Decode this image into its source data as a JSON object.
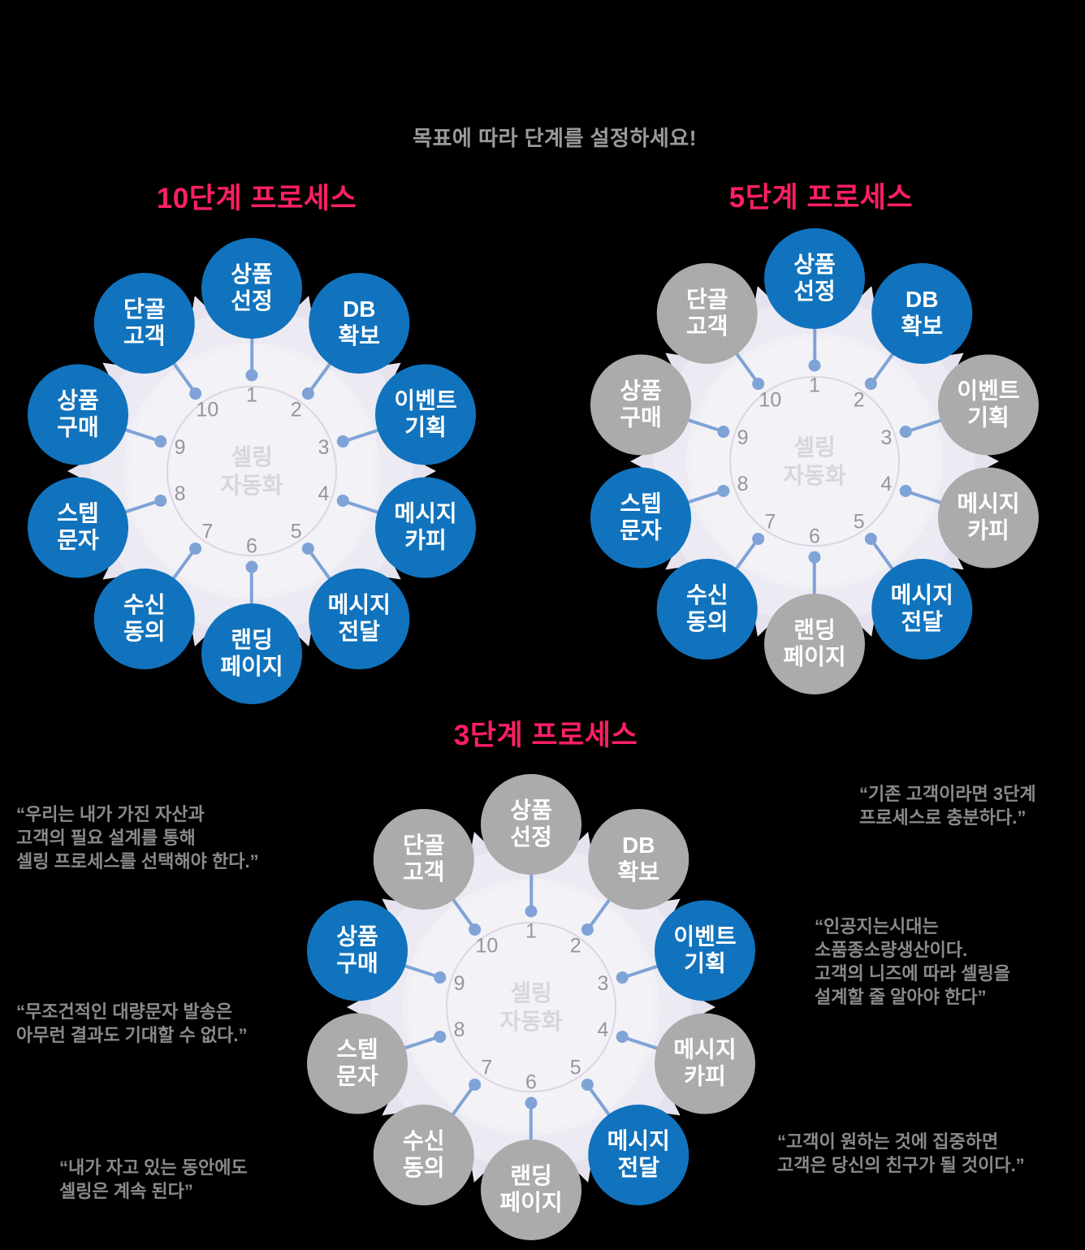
{
  "page": {
    "tagline": "목표에 따라 단계를 설정하세요!"
  },
  "colors": {
    "background": "#000000",
    "active_node": "#1173BD",
    "inactive_node": "#ABABAB",
    "title_pink": "#FF1F62",
    "spoke_blue": "#7FA3D6",
    "plate": "#ECEAF2",
    "node_text": "#FFFFFF",
    "quote_gray": "#8A8A8A"
  },
  "center_label": "셀링\n자동화",
  "steps": [
    {
      "num": 1,
      "label": "상품\n선정"
    },
    {
      "num": 2,
      "label": "DB\n확보"
    },
    {
      "num": 3,
      "label": "이벤트\n기획"
    },
    {
      "num": 4,
      "label": "메시지\n카피"
    },
    {
      "num": 5,
      "label": "메시지\n전달"
    },
    {
      "num": 6,
      "label": "랜딩\n페이지"
    },
    {
      "num": 7,
      "label": "수신\n동의"
    },
    {
      "num": 8,
      "label": "스텝\n문자"
    },
    {
      "num": 9,
      "label": "상품\n구매"
    },
    {
      "num": 10,
      "label": "단골\n고객"
    }
  ],
  "diagrams": [
    {
      "id": "process-10",
      "title": "10단계 프로세스",
      "active_steps": [
        1,
        2,
        3,
        4,
        5,
        6,
        7,
        8,
        9,
        10
      ]
    },
    {
      "id": "process-5",
      "title": "5단계 프로세스",
      "active_steps": [
        1,
        2,
        5,
        7,
        8
      ]
    },
    {
      "id": "process-3",
      "title": "3단계 프로세스",
      "active_steps": [
        3,
        5,
        9
      ]
    }
  ],
  "quotes": {
    "left_top": "“우리는 내가 가진 자산과\n고객의 필요 설계를 통해\n셀링 프로세스를 선택해야 한다.”",
    "left_middle": "“무조건적인 대량문자 발송은\n아무런 결과도 기대할 수 없다.”",
    "left_bottom": "“내가 자고 있는 동안에도\n셀링은 계속 된다”",
    "right_top": "“기존 고객이라면 3단계\n프로세스로 충분하다.”",
    "right_middle": "“인공지는시대는\n소품종소량생산이다.\n고객의 니즈에 따라 셀링을\n설계할 줄 알아야 한다”",
    "right_bottom": "“고객이 원하는 것에 집중하면\n고객은 당신의 친구가 될 것이다.”"
  }
}
